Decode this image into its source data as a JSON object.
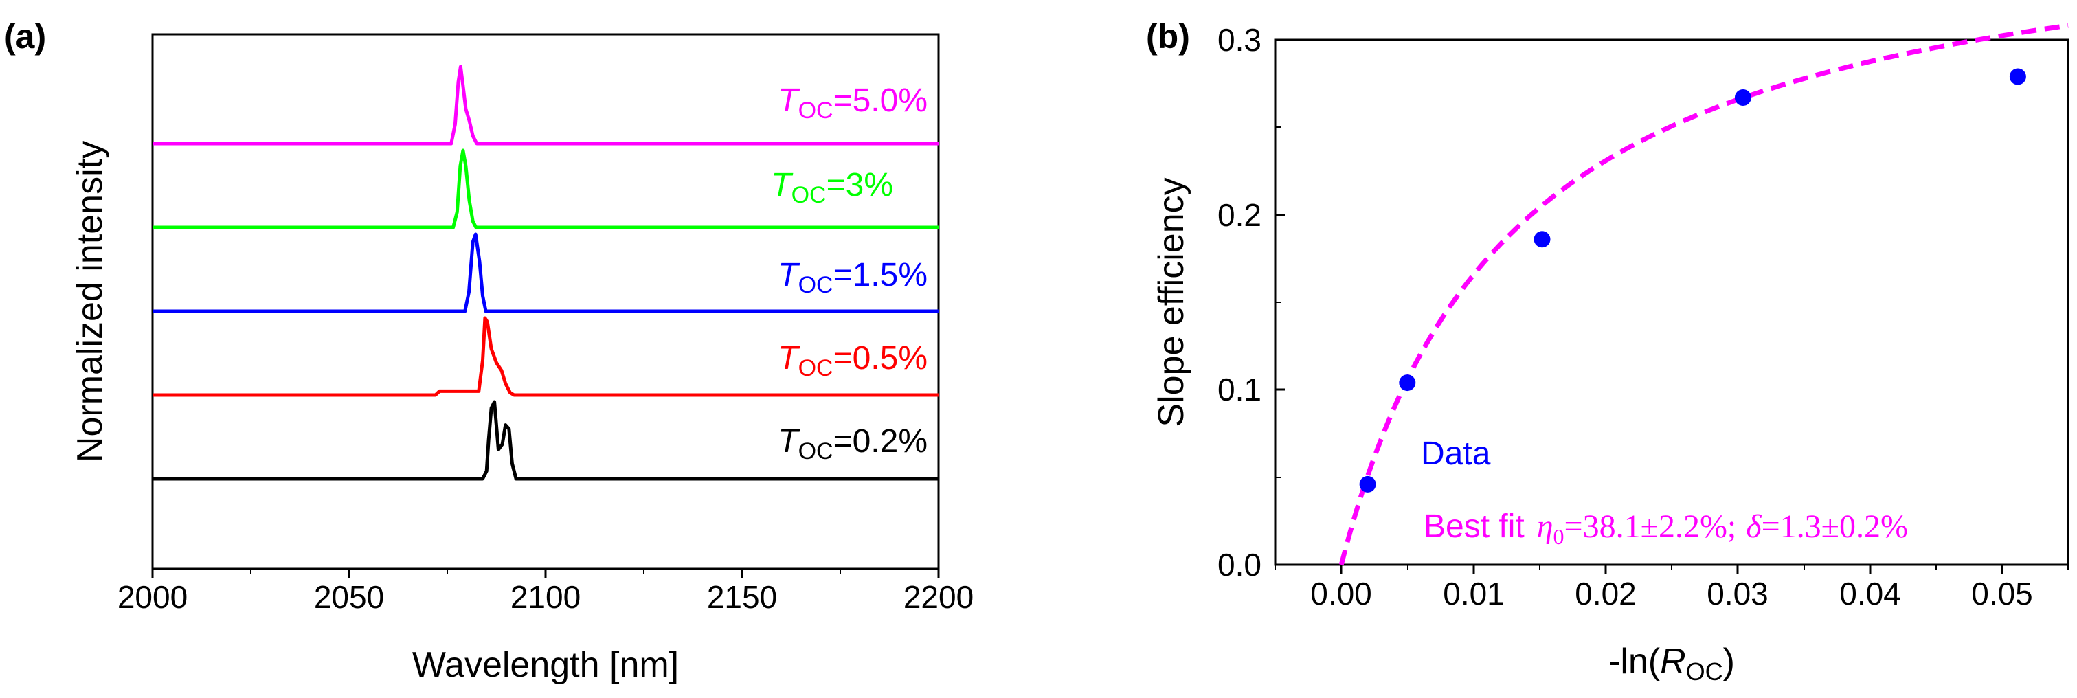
{
  "chart_data": [
    {
      "id": "a",
      "panel_label": "(a)",
      "type": "line",
      "xlabel": "Wavelength [nm]",
      "ylabel": "Normalized intensity",
      "xlim": [
        2000,
        2200
      ],
      "xticks": [
        "2000",
        "2050",
        "2100",
        "2150",
        "2200"
      ],
      "yticks_shown": false,
      "series": [
        {
          "name": "T_OC=0.2%",
          "label_prefix": "T",
          "label_sub": "OC",
          "label_value": "=0.2%",
          "color": "#000000",
          "offset": 0.0,
          "x": [
            2000,
            2084,
            2085,
            2085.5,
            2086.2,
            2087,
            2088,
            2089,
            2089.8,
            2090.7,
            2091.5,
            2092.5,
            2200
          ],
          "y": [
            0.0,
            0.0,
            0.1,
            0.5,
            0.92,
            1.0,
            0.38,
            0.45,
            0.7,
            0.65,
            0.2,
            0.0,
            0.0
          ]
        },
        {
          "name": "T_OC=0.5%",
          "label_prefix": "T",
          "label_sub": "OC",
          "label_value": "=0.5%",
          "color": "#ff0000",
          "offset": 1.0,
          "x": [
            2000,
            2072,
            2073,
            2083,
            2084,
            2084.6,
            2085.2,
            2086.2,
            2087.5,
            2088.8,
            2089.8,
            2091,
            2092,
            2200
          ],
          "y": [
            0.0,
            0.0,
            0.05,
            0.05,
            0.45,
            1.0,
            0.95,
            0.6,
            0.42,
            0.32,
            0.15,
            0.03,
            0.0,
            0.0
          ]
        },
        {
          "name": "T_OC=1.5%",
          "label_prefix": "T",
          "label_sub": "OC",
          "label_value": "=1.5%",
          "color": "#0000ff",
          "offset": 2.0,
          "x": [
            2000,
            2079.5,
            2080.5,
            2081.5,
            2082.2,
            2083.2,
            2084,
            2084.8,
            2200
          ],
          "y": [
            0.0,
            0.0,
            0.25,
            0.9,
            1.0,
            0.65,
            0.2,
            0.0,
            0.0
          ]
        },
        {
          "name": "T_OC=3%",
          "label_prefix": "T",
          "label_sub": "OC",
          "label_value": "=3%",
          "color": "#00ff00",
          "offset": 3.0,
          "x": [
            2000,
            2076.5,
            2077.5,
            2078.3,
            2079,
            2079.7,
            2080.6,
            2081.5,
            2082.3,
            2200
          ],
          "y": [
            0.0,
            0.0,
            0.2,
            0.8,
            1.0,
            0.8,
            0.35,
            0.08,
            0.0,
            0.0
          ]
        },
        {
          "name": "T_OC=5.0%",
          "label_prefix": "T",
          "label_sub": "OC",
          "label_value": "=5.0%",
          "color": "#ff00ff",
          "offset": 4.0,
          "x": [
            2000,
            2076,
            2077,
            2077.8,
            2078.4,
            2079,
            2079.7,
            2080.6,
            2081.5,
            2082.5,
            2200
          ],
          "y": [
            0.0,
            0.0,
            0.25,
            0.8,
            1.0,
            0.75,
            0.45,
            0.3,
            0.1,
            0.0,
            0.0
          ]
        }
      ]
    },
    {
      "id": "b",
      "panel_label": "(b)",
      "type": "scatter",
      "xlabel_prefix": "-ln(",
      "xlabel_var": "R",
      "xlabel_sub": "OC",
      "xlabel_suffix": ")",
      "ylabel": "Slope efficiency",
      "xlim": [
        -0.005,
        0.055
      ],
      "ylim": [
        0.0,
        0.3
      ],
      "xticks": [
        "0.00",
        "0.01",
        "0.02",
        "0.03",
        "0.04",
        "0.05"
      ],
      "yticks": [
        "0.0",
        "0.1",
        "0.2",
        "0.3"
      ],
      "data_series": {
        "name": "Data",
        "color": "#0000ff",
        "x": [
          0.002,
          0.005,
          0.0152,
          0.0304,
          0.0512
        ],
        "y": [
          0.046,
          0.104,
          0.186,
          0.267,
          0.279
        ]
      },
      "fit_series": {
        "name": "Best fit",
        "color": "#ff00ff",
        "style": "dashed",
        "eta0": 0.381,
        "delta": 0.013,
        "x_range": [
          0.0,
          0.055
        ]
      },
      "legend": {
        "data_label": "Data",
        "fit_label": "Best fit",
        "eta_symbol": "η",
        "eta_sub": "0",
        "eta_value": "=38.1±2.2%;",
        "delta_symbol": "δ",
        "delta_value": "=1.3±0.2%"
      }
    }
  ]
}
